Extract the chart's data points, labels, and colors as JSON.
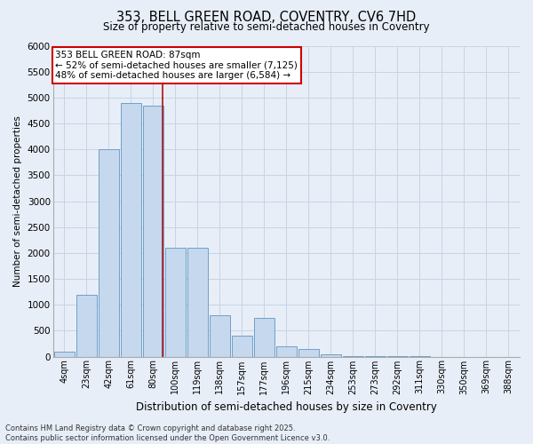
{
  "title_line1": "353, BELL GREEN ROAD, COVENTRY, CV6 7HD",
  "title_line2": "Size of property relative to semi-detached houses in Coventry",
  "xlabel": "Distribution of semi-detached houses by size in Coventry",
  "ylabel": "Number of semi-detached properties",
  "categories": [
    "4sqm",
    "23sqm",
    "42sqm",
    "61sqm",
    "80sqm",
    "100sqm",
    "119sqm",
    "138sqm",
    "157sqm",
    "177sqm",
    "196sqm",
    "215sqm",
    "234sqm",
    "253sqm",
    "273sqm",
    "292sqm",
    "311sqm",
    "330sqm",
    "350sqm",
    "369sqm",
    "388sqm"
  ],
  "values": [
    100,
    1200,
    4000,
    4900,
    4850,
    2100,
    2100,
    800,
    400,
    750,
    200,
    150,
    50,
    10,
    5,
    2,
    1,
    0,
    0,
    0,
    0
  ],
  "bar_color": "#c5d8ee",
  "bar_edge_color": "#6fa0c8",
  "grid_color": "#c8d4e4",
  "background_color": "#e8eef8",
  "vline_color": "#aa1111",
  "annotation_text": "353 BELL GREEN ROAD: 87sqm\n← 52% of semi-detached houses are smaller (7,125)\n48% of semi-detached houses are larger (6,584) →",
  "annotation_box_color": "#ffffff",
  "annotation_box_edge": "#cc0000",
  "ylim": [
    0,
    6000
  ],
  "yticks": [
    0,
    500,
    1000,
    1500,
    2000,
    2500,
    3000,
    3500,
    4000,
    4500,
    5000,
    5500,
    6000
  ],
  "footnote": "Contains HM Land Registry data © Crown copyright and database right 2025.\nContains public sector information licensed under the Open Government Licence v3.0."
}
